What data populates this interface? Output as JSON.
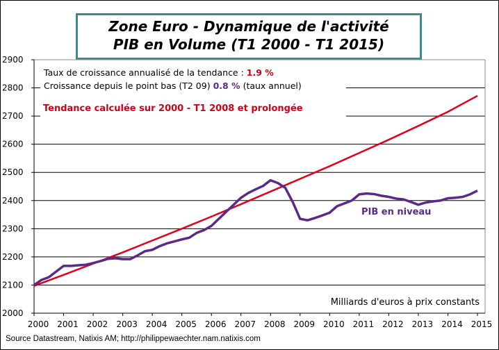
{
  "title": {
    "line1": "Zone Euro - Dynamique de l'activité",
    "line2": "PIB en Volume (T1 2000 - T1 2015)"
  },
  "annotations": {
    "trend_rate_label": "Taux de croissance annualisé de la tendance : ",
    "trend_rate_value": "1.9 %",
    "since_low_label": "Croissance depuis le point bas (T2 09) ",
    "since_low_value": "0.8 %",
    "since_low_suffix": " (taux annuel)",
    "trend_note": "Tendance calculée  sur 2000 - T1 2008 et prolongée",
    "pib_label": "PIB en niveau",
    "units": "Milliards  d'euros à prix constants"
  },
  "source": "Source Datastream, Natixis AM;  http://philippewaechter.nam.natixis.com",
  "colors": {
    "pib": "#5b2a86",
    "trend": "#e0001b",
    "title_border": "#3d8a8a",
    "rate_value": "#c8001a",
    "low_value": "#5b2a86"
  },
  "chart_data": {
    "type": "line",
    "xlim": [
      2000,
      2015
    ],
    "ylim": [
      2000,
      2900
    ],
    "grid": true,
    "x_ticks": [
      "2000",
      "2001",
      "2002",
      "2003",
      "2004",
      "2005",
      "2006",
      "2007",
      "2008",
      "2009",
      "2010",
      "2011",
      "2012",
      "2013",
      "2014",
      "2015"
    ],
    "y_ticks": [
      "2000",
      "2100",
      "2200",
      "2300",
      "2400",
      "2500",
      "2600",
      "2700",
      "2800",
      "2900"
    ],
    "series": [
      {
        "name": "PIB en niveau",
        "color": "#5b2a86",
        "x_start": "T1 2000",
        "frequency": "quarterly",
        "values": [
          2100,
          2118,
          2128,
          2148,
          2168,
          2168,
          2170,
          2172,
          2178,
          2185,
          2193,
          2195,
          2192,
          2192,
          2205,
          2220,
          2225,
          2238,
          2248,
          2255,
          2262,
          2268,
          2285,
          2295,
          2310,
          2335,
          2360,
          2385,
          2410,
          2427,
          2440,
          2452,
          2472,
          2462,
          2445,
          2395,
          2335,
          2330,
          2338,
          2347,
          2357,
          2380,
          2390,
          2400,
          2422,
          2425,
          2423,
          2417,
          2413,
          2407,
          2404,
          2395,
          2385,
          2393,
          2397,
          2400,
          2408,
          2410,
          2413,
          2422,
          2435
        ]
      },
      {
        "name": "Tendance",
        "color": "#e0001b",
        "x": [
          2000,
          2001,
          2002,
          2003,
          2004,
          2005,
          2006,
          2007,
          2008,
          2009,
          2010,
          2011,
          2012,
          2013,
          2014,
          2015
        ],
        "values": [
          2097,
          2136,
          2176,
          2216,
          2258,
          2300,
          2343,
          2387,
          2432,
          2477,
          2522,
          2569,
          2616,
          2665,
          2715,
          2772
        ]
      }
    ]
  }
}
